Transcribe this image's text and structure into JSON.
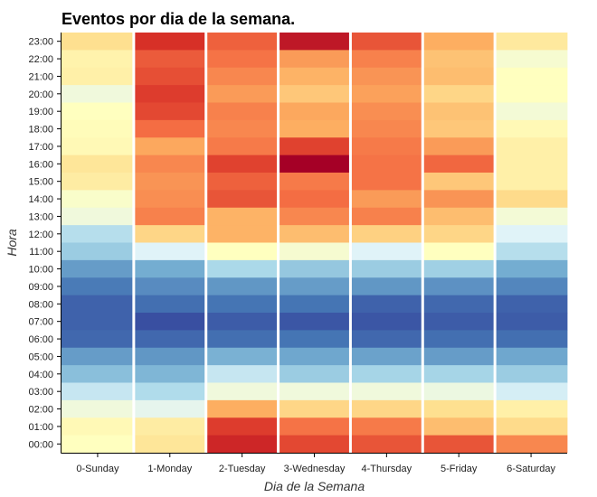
{
  "chart_data": {
    "type": "heatmap",
    "title": "Eventos por dia de la semana.",
    "xlabel": "Dia de la Semana",
    "ylabel": "Hora",
    "columns": [
      "0-Sunday",
      "1-Monday",
      "2-Tuesday",
      "3-Wednesday",
      "4-Thursday",
      "5-Friday",
      "6-Saturday"
    ],
    "rows": [
      "23:00",
      "22:00",
      "21:00",
      "20:00",
      "19:00",
      "18:00",
      "17:00",
      "16:00",
      "15:00",
      "14:00",
      "13:00",
      "12:00",
      "11:00",
      "10:00",
      "09:00",
      "08:00",
      "07:00",
      "06:00",
      "05:00",
      "04:00",
      "03:00",
      "02:00",
      "01:00",
      "00:00"
    ],
    "value_scale": "relative intensity 0-1 (no colorbar shown)",
    "colormap": "RdYlBu_r",
    "values": [
      [
        0.6,
        0.9,
        0.82,
        0.95,
        0.84,
        0.7,
        0.57
      ],
      [
        0.54,
        0.83,
        0.79,
        0.73,
        0.77,
        0.66,
        0.47
      ],
      [
        0.55,
        0.85,
        0.76,
        0.69,
        0.74,
        0.67,
        0.5
      ],
      [
        0.45,
        0.88,
        0.73,
        0.65,
        0.72,
        0.62,
        0.5
      ],
      [
        0.5,
        0.86,
        0.77,
        0.71,
        0.75,
        0.66,
        0.46
      ],
      [
        0.51,
        0.8,
        0.76,
        0.7,
        0.76,
        0.65,
        0.52
      ],
      [
        0.52,
        0.71,
        0.78,
        0.87,
        0.78,
        0.73,
        0.55
      ],
      [
        0.58,
        0.76,
        0.87,
        1.0,
        0.79,
        0.81,
        0.55
      ],
      [
        0.56,
        0.74,
        0.82,
        0.78,
        0.79,
        0.65,
        0.55
      ],
      [
        0.48,
        0.75,
        0.84,
        0.8,
        0.73,
        0.74,
        0.61
      ],
      [
        0.45,
        0.77,
        0.69,
        0.76,
        0.77,
        0.67,
        0.46
      ],
      [
        0.32,
        0.62,
        0.69,
        0.67,
        0.63,
        0.62,
        0.4
      ],
      [
        0.27,
        0.4,
        0.5,
        0.47,
        0.4,
        0.5,
        0.32
      ],
      [
        0.17,
        0.2,
        0.3,
        0.26,
        0.27,
        0.28,
        0.2
      ],
      [
        0.11,
        0.14,
        0.16,
        0.17,
        0.16,
        0.15,
        0.13
      ],
      [
        0.07,
        0.09,
        0.1,
        0.1,
        0.07,
        0.08,
        0.07
      ],
      [
        0.07,
        0.04,
        0.06,
        0.05,
        0.05,
        0.06,
        0.06
      ],
      [
        0.08,
        0.08,
        0.09,
        0.1,
        0.08,
        0.09,
        0.09
      ],
      [
        0.17,
        0.16,
        0.21,
        0.19,
        0.18,
        0.17,
        0.19
      ],
      [
        0.24,
        0.22,
        0.35,
        0.27,
        0.29,
        0.29,
        0.27
      ],
      [
        0.35,
        0.31,
        0.45,
        0.45,
        0.45,
        0.44,
        0.38
      ],
      [
        0.45,
        0.42,
        0.7,
        0.62,
        0.62,
        0.6,
        0.55
      ],
      [
        0.52,
        0.56,
        0.88,
        0.79,
        0.78,
        0.67,
        0.61
      ],
      [
        0.5,
        0.58,
        0.92,
        0.86,
        0.84,
        0.84,
        0.76
      ]
    ],
    "grid": false,
    "legend": "none"
  }
}
